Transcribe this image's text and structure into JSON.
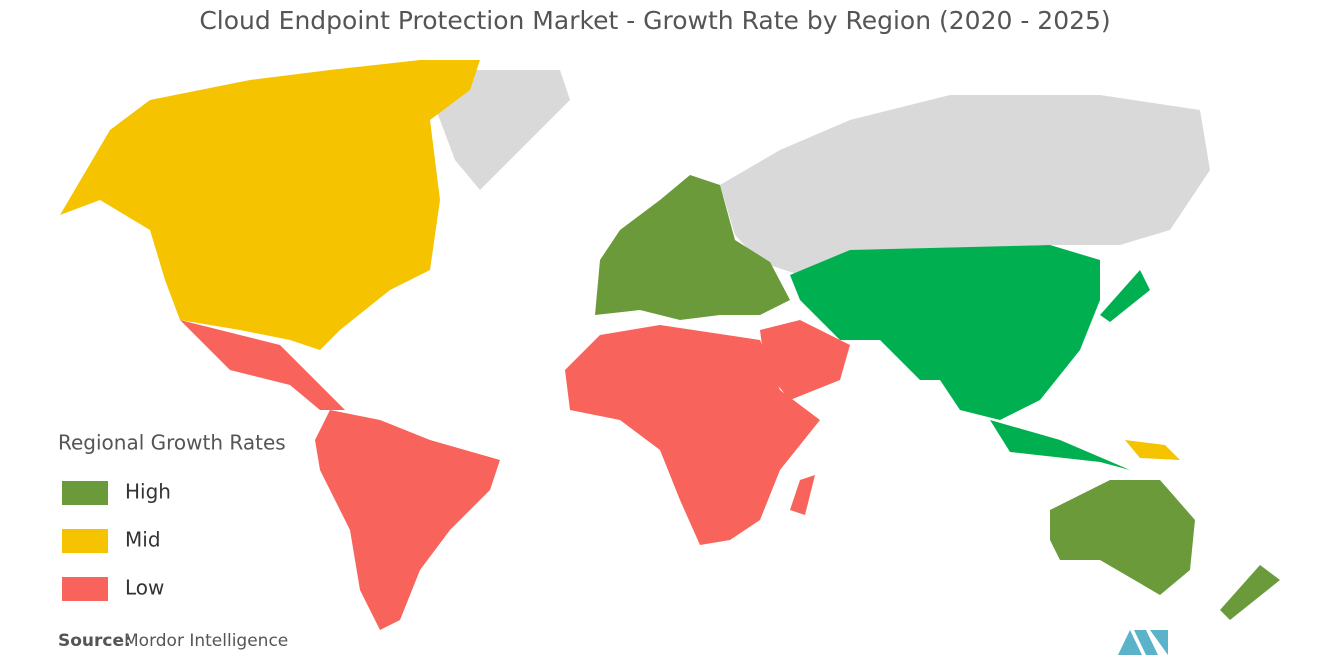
{
  "title": "Cloud Endpoint Protection Market - Growth Rate by Region (2020 - 2025)",
  "legend": {
    "title": "Regional Growth Rates",
    "items": [
      {
        "label": "High",
        "color": "#6a9a3a"
      },
      {
        "label": "Mid",
        "color": "#f5c300"
      },
      {
        "label": "Low",
        "color": "#f8635b"
      }
    ]
  },
  "source": {
    "label": "Source:",
    "text": "Mordor Intelligence"
  }
}
